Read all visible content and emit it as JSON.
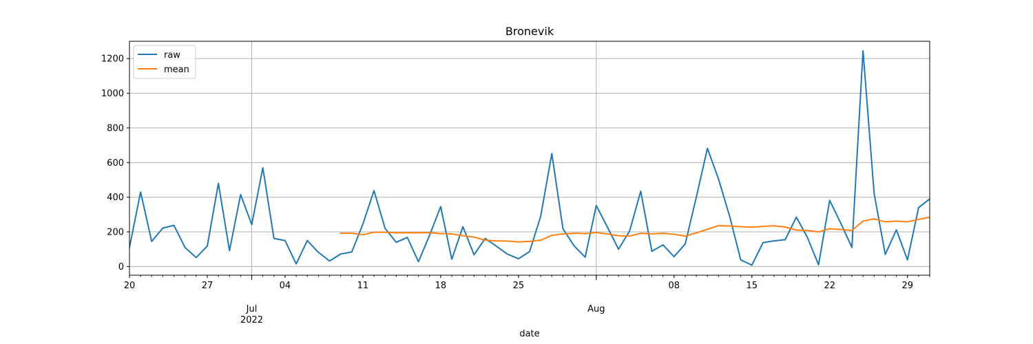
{
  "chart_data": {
    "type": "line",
    "title": "Bronevik",
    "xlabel": "date",
    "ylabel": "",
    "x_start": "2022-06-20",
    "x_end": "2022-08-31",
    "ylim": [
      -50,
      1300
    ],
    "grid": true,
    "legend_position": "top-left",
    "x_major_ticks": [
      {
        "date": "2022-07-01",
        "label": "Jul\n2022"
      },
      {
        "date": "2022-08-01",
        "label": "Aug"
      }
    ],
    "x_minor_ticks": [
      {
        "date": "2022-06-20",
        "label": "20"
      },
      {
        "date": "2022-06-27",
        "label": "27"
      },
      {
        "date": "2022-07-04",
        "label": "04"
      },
      {
        "date": "2022-07-11",
        "label": "11"
      },
      {
        "date": "2022-07-18",
        "label": "18"
      },
      {
        "date": "2022-07-25",
        "label": "25"
      },
      {
        "date": "2022-08-08",
        "label": "08"
      },
      {
        "date": "2022-08-15",
        "label": "15"
      },
      {
        "date": "2022-08-22",
        "label": "22"
      },
      {
        "date": "2022-08-29",
        "label": "29"
      }
    ],
    "y_ticks": [
      0,
      200,
      400,
      600,
      800,
      1000,
      1200
    ],
    "series": [
      {
        "name": "raw",
        "color": "#1f77b4",
        "points": [
          [
            "2022-06-20",
            110
          ],
          [
            "2022-06-21",
            430
          ],
          [
            "2022-06-22",
            145
          ],
          [
            "2022-06-23",
            222
          ],
          [
            "2022-06-24",
            238
          ],
          [
            "2022-06-25",
            110
          ],
          [
            "2022-06-26",
            52
          ],
          [
            "2022-06-27",
            118
          ],
          [
            "2022-06-28",
            480
          ],
          [
            "2022-06-29",
            92
          ],
          [
            "2022-06-30",
            415
          ],
          [
            "2022-07-01",
            242
          ],
          [
            "2022-07-02",
            570
          ],
          [
            "2022-07-03",
            162
          ],
          [
            "2022-07-04",
            150
          ],
          [
            "2022-07-05",
            15
          ],
          [
            "2022-07-06",
            150
          ],
          [
            "2022-07-07",
            82
          ],
          [
            "2022-07-08",
            32
          ],
          [
            "2022-07-09",
            72
          ],
          [
            "2022-07-10",
            84
          ],
          [
            "2022-07-11",
            245
          ],
          [
            "2022-07-12",
            438
          ],
          [
            "2022-07-13",
            220
          ],
          [
            "2022-07-14",
            140
          ],
          [
            "2022-07-15",
            168
          ],
          [
            "2022-07-16",
            28
          ],
          [
            "2022-07-17",
            180
          ],
          [
            "2022-07-18",
            346
          ],
          [
            "2022-07-19",
            42
          ],
          [
            "2022-07-20",
            230
          ],
          [
            "2022-07-21",
            68
          ],
          [
            "2022-07-22",
            162
          ],
          [
            "2022-07-23",
            118
          ],
          [
            "2022-07-24",
            72
          ],
          [
            "2022-07-25",
            45
          ],
          [
            "2022-07-26",
            86
          ],
          [
            "2022-07-27",
            290
          ],
          [
            "2022-07-28",
            652
          ],
          [
            "2022-07-29",
            218
          ],
          [
            "2022-07-30",
            120
          ],
          [
            "2022-07-31",
            54
          ],
          [
            "2022-08-01",
            352
          ],
          [
            "2022-08-02",
            228
          ],
          [
            "2022-08-03",
            100
          ],
          [
            "2022-08-04",
            205
          ],
          [
            "2022-08-05",
            435
          ],
          [
            "2022-08-06",
            88
          ],
          [
            "2022-08-07",
            125
          ],
          [
            "2022-08-08",
            57
          ],
          [
            "2022-08-09",
            130
          ],
          [
            "2022-08-10",
            400
          ],
          [
            "2022-08-11",
            682
          ],
          [
            "2022-08-12",
            505
          ],
          [
            "2022-08-13",
            290
          ],
          [
            "2022-08-14",
            38
          ],
          [
            "2022-08-15",
            8
          ],
          [
            "2022-08-16",
            138
          ],
          [
            "2022-08-17",
            148
          ],
          [
            "2022-08-18",
            155
          ],
          [
            "2022-08-19",
            285
          ],
          [
            "2022-08-20",
            168
          ],
          [
            "2022-08-21",
            10
          ],
          [
            "2022-08-22",
            382
          ],
          [
            "2022-08-23",
            250
          ],
          [
            "2022-08-24",
            110
          ],
          [
            "2022-08-25",
            1245
          ],
          [
            "2022-08-26",
            422
          ],
          [
            "2022-08-27",
            70
          ],
          [
            "2022-08-28",
            212
          ],
          [
            "2022-08-29",
            38
          ],
          [
            "2022-08-30",
            340
          ],
          [
            "2022-08-31",
            390
          ]
        ]
      },
      {
        "name": "mean",
        "color": "#ff7f0e",
        "points": [
          [
            "2022-07-09",
            192
          ],
          [
            "2022-07-10",
            192
          ],
          [
            "2022-07-11",
            184
          ],
          [
            "2022-07-12",
            198
          ],
          [
            "2022-07-13",
            198
          ],
          [
            "2022-07-14",
            194
          ],
          [
            "2022-07-15",
            195
          ],
          [
            "2022-07-16",
            194
          ],
          [
            "2022-07-17",
            196
          ],
          [
            "2022-07-18",
            190
          ],
          [
            "2022-07-19",
            188
          ],
          [
            "2022-07-20",
            178
          ],
          [
            "2022-07-21",
            170
          ],
          [
            "2022-07-22",
            152
          ],
          [
            "2022-07-23",
            148
          ],
          [
            "2022-07-24",
            147
          ],
          [
            "2022-07-25",
            142
          ],
          [
            "2022-07-26",
            145
          ],
          [
            "2022-07-27",
            152
          ],
          [
            "2022-07-28",
            180
          ],
          [
            "2022-07-29",
            188
          ],
          [
            "2022-07-30",
            192
          ],
          [
            "2022-07-31",
            190
          ],
          [
            "2022-08-01",
            196
          ],
          [
            "2022-08-02",
            188
          ],
          [
            "2022-08-03",
            178
          ],
          [
            "2022-08-04",
            176
          ],
          [
            "2022-08-05",
            192
          ],
          [
            "2022-08-06",
            188
          ],
          [
            "2022-08-07",
            192
          ],
          [
            "2022-08-08",
            186
          ],
          [
            "2022-08-09",
            176
          ],
          [
            "2022-08-10",
            194
          ],
          [
            "2022-08-11",
            215
          ],
          [
            "2022-08-12",
            236
          ],
          [
            "2022-08-13",
            234
          ],
          [
            "2022-08-14",
            230
          ],
          [
            "2022-08-15",
            227
          ],
          [
            "2022-08-16",
            232
          ],
          [
            "2022-08-17",
            235
          ],
          [
            "2022-08-18",
            228
          ],
          [
            "2022-08-19",
            210
          ],
          [
            "2022-08-20",
            208
          ],
          [
            "2022-08-21",
            200
          ],
          [
            "2022-08-22",
            218
          ],
          [
            "2022-08-23",
            214
          ],
          [
            "2022-08-24",
            208
          ],
          [
            "2022-08-25",
            262
          ],
          [
            "2022-08-26",
            275
          ],
          [
            "2022-08-27",
            258
          ],
          [
            "2022-08-28",
            262
          ],
          [
            "2022-08-29",
            258
          ],
          [
            "2022-08-30",
            272
          ],
          [
            "2022-08-31",
            285
          ]
        ]
      }
    ]
  }
}
